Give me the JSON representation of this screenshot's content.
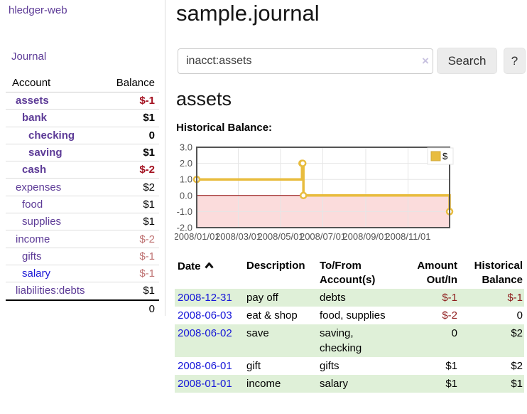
{
  "colors": {
    "link_purple": "#5d3b97",
    "link_blue": "#1a18d6",
    "negative_strong": "#a3101f",
    "negative_muted": "#bf7373",
    "negative_table": "#8e1c1c",
    "row_stripe_green": "#dff0d8",
    "chart_line": "#e8bc3e",
    "chart_negative_fill": "#fbdcdc",
    "chart_zero_line": "#8b0000",
    "chart_border": "#545454",
    "chart_grid": "#e6e6e6"
  },
  "sidebar": {
    "brand": "hledger-web",
    "journal_label": "Journal",
    "accounts": {
      "header_account": "Account",
      "header_balance": "Balance",
      "rows": [
        {
          "name": "assets",
          "balance": "$-1"
        },
        {
          "name": "bank",
          "balance": "$1"
        },
        {
          "name": "checking",
          "balance": "0"
        },
        {
          "name": "saving",
          "balance": "$1"
        },
        {
          "name": "cash",
          "balance": "$-2"
        },
        {
          "name": "expenses",
          "balance": "$2"
        },
        {
          "name": "food",
          "balance": "$1"
        },
        {
          "name": "supplies",
          "balance": "$1"
        },
        {
          "name": "income",
          "balance": "$-2"
        },
        {
          "name": "gifts",
          "balance": "$-1"
        },
        {
          "name": "salary",
          "balance": "$-1"
        },
        {
          "name": "liabilities:debts",
          "balance": "$1"
        }
      ],
      "total": "0"
    }
  },
  "header": {
    "title": "sample.journal"
  },
  "search": {
    "value": "inacct:assets",
    "clear_label": "×",
    "search_label": "Search",
    "help_label": "?"
  },
  "account_page": {
    "heading": "assets",
    "chart_title": "Historical Balance:"
  },
  "register": {
    "headers": {
      "date": "Date",
      "description": "Description",
      "accounts": "To/From Account(s)",
      "amount": "Amount Out/In",
      "balance": "Historical Balance"
    },
    "rows": [
      {
        "date": "2008-12-31",
        "description": "pay off",
        "accounts": "debts",
        "amount": "$-1",
        "balance": "$-1"
      },
      {
        "date": "2008-06-03",
        "description": "eat & shop",
        "accounts": "food, supplies",
        "amount": "$-2",
        "balance": "0"
      },
      {
        "date": "2008-06-02",
        "description": "save",
        "accounts": "saving, checking",
        "amount": "0",
        "balance": "$2"
      },
      {
        "date": "2008-06-01",
        "description": "gift",
        "accounts": "gifts",
        "amount": "$1",
        "balance": "$2"
      },
      {
        "date": "2008-01-01",
        "description": "income",
        "accounts": "salary",
        "amount": "$1",
        "balance": "$1"
      }
    ]
  },
  "chart_data": {
    "type": "line",
    "title": "Historical Balance",
    "step": true,
    "series": [
      {
        "name": "$",
        "color": "#e8bc3e",
        "points": [
          {
            "date": "2008/01/01",
            "value": 1
          },
          {
            "date": "2008/06/01",
            "value": 2
          },
          {
            "date": "2008/06/02",
            "value": 2
          },
          {
            "date": "2008/06/03",
            "value": 0
          },
          {
            "date": "2008/12/31",
            "value": -1
          }
        ]
      }
    ],
    "x_range": [
      "2008/01/01",
      "2008/12/31"
    ],
    "x_ticks": [
      "2008/01/01",
      "2008/03/01",
      "2008/05/01",
      "2008/07/01",
      "2008/09/01",
      "2008/11/01"
    ],
    "y_ticks": [
      "3.0",
      "2.0",
      "1.0",
      "0.0",
      "-1.0",
      "-2.0"
    ],
    "ylim": [
      -2,
      3
    ],
    "grid": true,
    "legend_position": "top-right",
    "negative_region_highlighted": true
  }
}
